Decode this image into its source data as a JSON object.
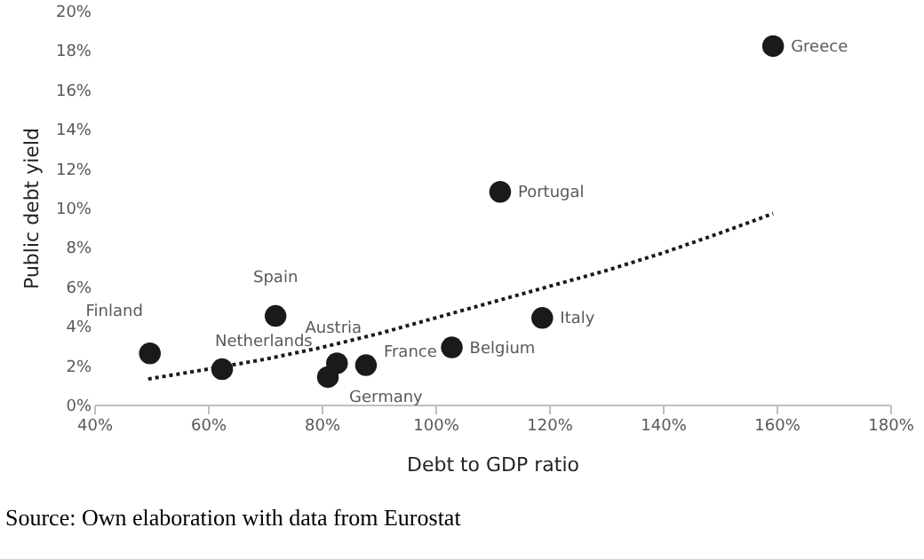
{
  "chart_data": {
    "type": "scatter",
    "xlabel": "Debt to GDP ratio",
    "ylabel": "Public debt yield",
    "series": [
      {
        "type": "scatter",
        "color": "#1a1a1a",
        "marker": "circle",
        "x": [
          159.4,
          111.4,
          118.8,
          102.9,
          87.8,
          82.7,
          81.1,
          71.9,
          62.5,
          49.8
        ],
        "values": [
          18.2,
          10.8,
          4.4,
          2.9,
          2.0,
          2.1,
          1.4,
          4.5,
          1.8,
          2.6
        ]
      },
      {
        "type": "line",
        "color": "#1a1a1a",
        "line_style": "dotted",
        "x": [
          49.5,
          60,
          70,
          80,
          90,
          100,
          110,
          120,
          130,
          140,
          150,
          159.4
        ],
        "values": [
          1.3,
          1.8,
          2.3,
          2.9,
          3.6,
          4.4,
          5.2,
          6.0,
          6.8,
          7.7,
          8.7,
          9.7
        ]
      }
    ],
    "xlim": [
      40,
      180
    ],
    "xticks": [
      {
        "value": 40,
        "label": "40%"
      },
      {
        "value": 60,
        "label": "60%"
      },
      {
        "value": 80,
        "label": "80%"
      },
      {
        "value": 100,
        "label": "100%"
      },
      {
        "value": 120,
        "label": "120%"
      },
      {
        "value": 140,
        "label": "140%"
      },
      {
        "value": 160,
        "label": "160%"
      },
      {
        "value": 180,
        "label": "180%"
      }
    ],
    "ylim": [
      0,
      20
    ],
    "yticks": [
      {
        "value": 0,
        "label": "0%"
      },
      {
        "value": 2,
        "label": "2%"
      },
      {
        "value": 4,
        "label": "4%"
      },
      {
        "value": 6,
        "label": "6%"
      },
      {
        "value": 8,
        "label": "8%"
      },
      {
        "value": 10,
        "label": "10%"
      },
      {
        "value": 12,
        "label": "12%"
      },
      {
        "value": 14,
        "label": "14%"
      },
      {
        "value": 16,
        "label": "16%"
      },
      {
        "value": 18,
        "label": "18%"
      },
      {
        "value": 20,
        "label": "20%"
      }
    ],
    "grid": false,
    "annotations": [
      {
        "text": "Greece",
        "x": 159.4,
        "y": 18.2
      },
      {
        "text": "Portugal",
        "x": 111.4,
        "y": 10.8
      },
      {
        "text": "Italy",
        "x": 118.8,
        "y": 4.4
      },
      {
        "text": "Belgium",
        "x": 102.9,
        "y": 2.9
      },
      {
        "text": "France",
        "x": 87.8,
        "y": 2.0
      },
      {
        "text": "Austria",
        "x": 82.7,
        "y": 2.1
      },
      {
        "text": "Germany",
        "x": 81.1,
        "y": 1.4
      },
      {
        "text": "Spain",
        "x": 71.9,
        "y": 4.5
      },
      {
        "text": "Netherlands",
        "x": 62.5,
        "y": 1.8
      },
      {
        "text": "Finland",
        "x": 49.8,
        "y": 2.6
      },
      "Source: Own elaboration with data from Eurostat"
    ]
  }
}
